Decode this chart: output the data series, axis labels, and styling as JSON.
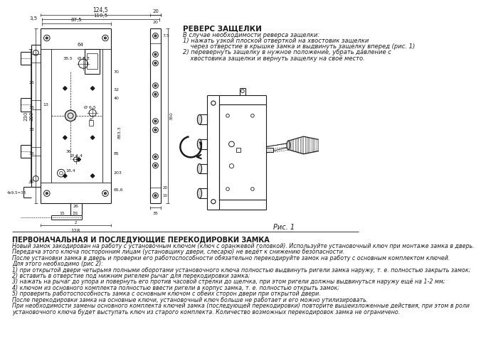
{
  "bg_color": "#ffffff",
  "line_color": "#1a1a1a",
  "text_color": "#1a1a1a",
  "title_revers": "РЕВЕРС ЗАЩЕЛКИ",
  "revers_line1": "В случае необходимости реверса защелки:",
  "revers_line2": "1) нажать узкой плоской отверткой на хвостовик защелки",
  "revers_line3": "    через отверстие в крышке замка и выдвинуть защелку вперед (рис. 1)",
  "revers_line4": "2) перевернуть защелку в нужное положение, убрать давление с",
  "revers_line5": "    хвостовика защелки и вернуть защелку на своё место.",
  "fig_label": "Рис. 1",
  "title_recoding": "ПЕРВОНАЧАЛЬНАЯ И ПОСЛЕДУЮЩИЕ ПЕРЕКОДИРОВКИ ЗАМКА",
  "recoding_line1": "Новый замок закодирован на работу с установочным ключом (ключ с оранжевой головкой). Используйте установочный ключ при монтаже замка в дверь.",
  "recoding_line2": "Передача этого ключа посторонним лицам (установщику двери, слесарю) не ведёт к снижению безопасности.",
  "recoding_line3": "После установки замка в дверь и проверки его работоспособности обязательно перекодируйте замок на работу с основным комплектом ключей.",
  "recoding_line4": "Для этого необходимо (рис 2):",
  "recoding_line5": "1) при открытой двери четырьмя полными оборотами установочного ключа полностью выдвинуть ригели замка наружу, т. е. полностью закрыть замок;",
  "recoding_line6": "2) вставить в отверстие под нижним ригелем рычаг для перекодировки замка;",
  "recoding_line7": "3) нажать на рычаг до упора и повернуть его против часовой стрелки до щелчка, при этом ригели должны выдвинуться наружу ещё на 1-2 мм;",
  "recoding_line8": "4) ключом из основного комплекта полностью ввести ригели в корпус замка, т. е. полностью открыть замок;",
  "recoding_line9": "5) проверить работоспособность замка с основным ключом с обеих сторон двери при открытой двери.",
  "recoding_line10": "После перекодировки замка на основные ключи, установочный ключ больше не работает и его можно утилизировать.",
  "recoding_line11": "При необходимости замены основного комплекта ключей замка (последующей перекодировки) повторите вышеизложенные действия, при этом в роли",
  "recoding_line12": "установочного ключа будет выступать ключ из старого комплекта. Количество возможных перекодировок замка не ограничено."
}
